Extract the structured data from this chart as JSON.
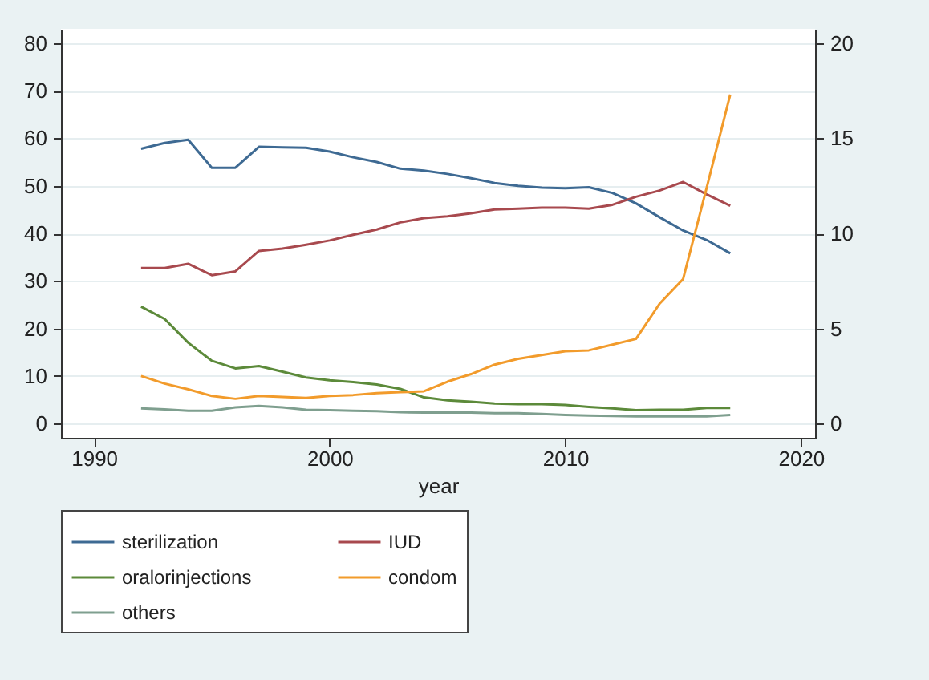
{
  "chart_data": {
    "type": "line",
    "xlabel": "year",
    "x": [
      1992,
      1993,
      1994,
      1995,
      1996,
      1997,
      1998,
      1999,
      2000,
      2001,
      2002,
      2003,
      2004,
      2005,
      2006,
      2007,
      2008,
      2009,
      2010,
      2011,
      2012,
      2013,
      2014,
      2015,
      2016,
      2017
    ],
    "xlim": [
      1988.6,
      2020.6
    ],
    "xticks": [
      1990,
      2000,
      2010,
      2020
    ],
    "ylim": [
      -3,
      83
    ],
    "yticks": [
      0,
      10,
      20,
      30,
      40,
      50,
      60,
      70,
      80
    ],
    "y2lim": [
      -0.75,
      20.75
    ],
    "y2ticks": [
      0,
      5,
      10,
      15,
      20
    ],
    "grid": "y",
    "legend": "bottom",
    "line_style": "solid",
    "series": [
      {
        "name": "sterilization",
        "color": "#3e6a93",
        "values": [
          57.8,
          59,
          59.7,
          53.8,
          53.8,
          58.2,
          58.1,
          58,
          57.2,
          56,
          55,
          53.6,
          53.2,
          52.5,
          51.6,
          50.6,
          50,
          49.6,
          49.5,
          49.7,
          48.5,
          46.3,
          43.4,
          40.6,
          38.6,
          35.8
        ]
      },
      {
        "name": "IUD",
        "color": "#a8494e",
        "values": [
          32.7,
          32.7,
          33.6,
          31.2,
          32,
          36.3,
          36.8,
          37.6,
          38.5,
          39.7,
          40.8,
          42.3,
          43.2,
          43.6,
          44.2,
          45,
          45.2,
          45.4,
          45.4,
          45.2,
          46,
          47.7,
          49,
          50.8,
          48.2,
          45.8
        ]
      },
      {
        "name": "oralorinjections",
        "color": "#5c8a3a",
        "values": [
          24.6,
          22,
          17,
          13.2,
          11.6,
          12.1,
          10.9,
          9.7,
          9.1,
          8.7,
          8.2,
          7.3,
          5.5,
          4.9,
          4.6,
          4.2,
          4.1,
          4.1,
          3.9,
          3.5,
          3.2,
          2.8,
          2.9,
          2.9,
          3.3,
          3.3
        ]
      },
      {
        "name": "condom",
        "color": "#f29b2b",
        "axis": "y2",
        "values": [
          2.5,
          2.1,
          1.8,
          1.45,
          1.3,
          1.45,
          1.4,
          1.35,
          1.45,
          1.5,
          1.6,
          1.65,
          1.7,
          2.2,
          2.6,
          3.1,
          3.4,
          3.6,
          3.8,
          3.85,
          4.15,
          4.45,
          6.3,
          7.6,
          12.4,
          17.3
        ]
      },
      {
        "name": "others",
        "color": "#7f9f8f",
        "values": [
          3.2,
          3,
          2.7,
          2.7,
          3.4,
          3.7,
          3.4,
          2.9,
          2.8,
          2.7,
          2.6,
          2.4,
          2.3,
          2.3,
          2.3,
          2.2,
          2.2,
          2.0,
          1.8,
          1.7,
          1.6,
          1.5,
          1.5,
          1.5,
          1.5,
          1.8
        ]
      }
    ]
  }
}
